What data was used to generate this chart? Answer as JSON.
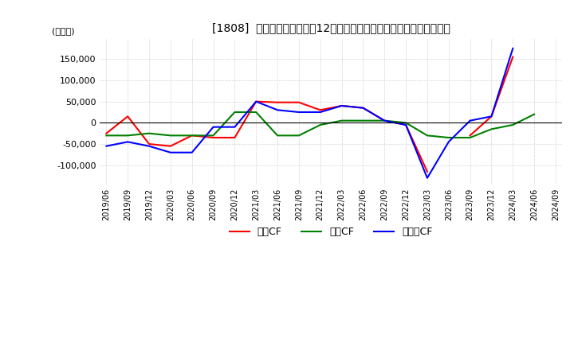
{
  "title": "[1808]  キャッシュフローの12か月移動合計の対前年同期増減額の推移",
  "ylabel": "(百万円)",
  "ylim": [
    -145000,
    200000
  ],
  "yticks": [
    -100000,
    -50000,
    0,
    50000,
    100000,
    150000
  ],
  "dates": [
    "2019/06",
    "2019/09",
    "2019/12",
    "2020/03",
    "2020/06",
    "2020/09",
    "2020/12",
    "2021/03",
    "2021/06",
    "2021/09",
    "2021/12",
    "2022/03",
    "2022/06",
    "2022/09",
    "2022/12",
    "2023/03",
    "2023/06",
    "2023/09",
    "2023/12",
    "2024/03",
    "2024/06",
    "2024/09"
  ],
  "operating_cf": [
    -25000,
    15000,
    -50000,
    -55000,
    -30000,
    -35000,
    -35000,
    50000,
    48000,
    48000,
    30000,
    40000,
    35000,
    5000,
    -5000,
    -115000,
    null,
    -30000,
    15000,
    155000,
    null,
    null
  ],
  "investing_cf": [
    -30000,
    -30000,
    -25000,
    -30000,
    -30000,
    -30000,
    25000,
    25000,
    -30000,
    -30000,
    -5000,
    5000,
    5000,
    5000,
    0,
    -30000,
    -35000,
    -35000,
    -15000,
    -5000,
    20000,
    null
  ],
  "free_cf": [
    -55000,
    -45000,
    -55000,
    -70000,
    -70000,
    -10000,
    -10000,
    50000,
    30000,
    25000,
    25000,
    40000,
    35000,
    5000,
    -5000,
    -130000,
    -45000,
    5000,
    15000,
    175000,
    null,
    null
  ],
  "operating_color": "#ff0000",
  "investing_color": "#008000",
  "free_color": "#0000ff",
  "bg_color": "#ffffff",
  "grid_color": "#b0b0b0"
}
